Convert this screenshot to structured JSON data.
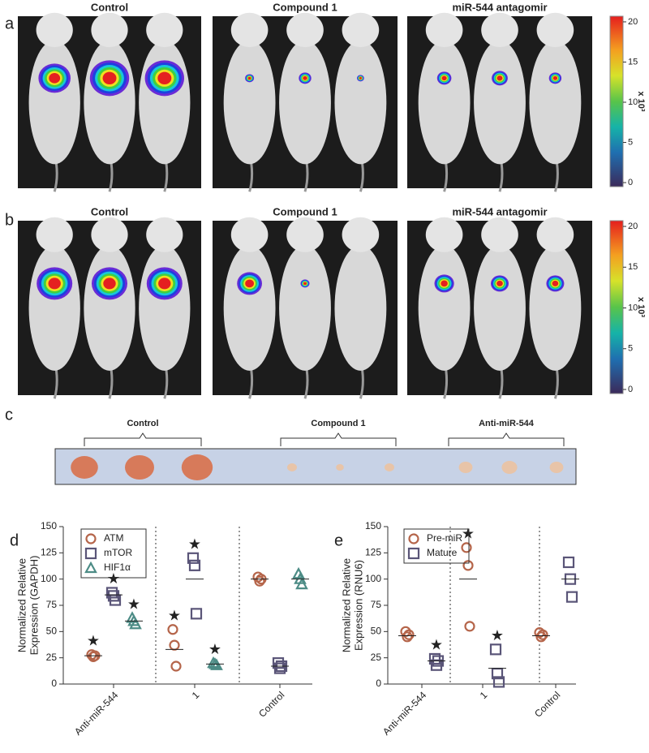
{
  "panels": {
    "a": {
      "label": "a",
      "titles": [
        "Control",
        "Compound 1",
        "miR-544 antagomir"
      ]
    },
    "b": {
      "label": "b",
      "titles": [
        "Control",
        "Compound 1",
        "miR-544 antagomir"
      ]
    },
    "colorbar": {
      "ticks": [
        0,
        5,
        10,
        15,
        20
      ],
      "lim": [
        -0.5,
        20.7
      ],
      "unit": "x 10³"
    },
    "c": {
      "label": "c",
      "groups": [
        "Control",
        "Compound 1",
        "Anti-miR-544"
      ]
    }
  },
  "chart_data": [
    {
      "type": "scatter",
      "panel_label": "d",
      "ylabel": [
        "Normalized Relative",
        "Expression (GAPDH)"
      ],
      "categories": [
        "Anti-miR-544",
        "1",
        "Control"
      ],
      "ylim": [
        0,
        150
      ],
      "yticks": [
        0,
        25,
        50,
        75,
        100,
        125,
        150
      ],
      "star": "★",
      "series": [
        {
          "name": "ATM",
          "color": "#b5654a",
          "marker": "circle",
          "values": [
            [
              28,
              26,
              27
            ],
            [
              52,
              37,
              17
            ],
            [
              102,
              98,
              100
            ]
          ],
          "means": [
            27,
            33,
            100
          ],
          "significant": [
            true,
            true,
            false
          ]
        },
        {
          "name": "mTOR",
          "color": "#5a5578",
          "marker": "square",
          "values": [
            [
              87,
              84,
              80
            ],
            [
              120,
              113,
              67
            ],
            [
              20,
              15,
              17
            ]
          ],
          "means": [
            85,
            100,
            17
          ],
          "significant": [
            true,
            true,
            false
          ]
        },
        {
          "name": "HIF1α",
          "color": "#4d8c86",
          "marker": "triangle",
          "values": [
            [
              63,
              60,
              57
            ],
            [
              20,
              19,
              18
            ],
            [
              105,
              100,
              95
            ]
          ],
          "means": [
            60,
            19,
            100
          ],
          "significant": [
            true,
            true,
            false
          ]
        }
      ]
    },
    {
      "type": "scatter",
      "panel_label": "e",
      "ylabel": [
        "Normalized Relative",
        "Expression (RNU6)"
      ],
      "categories": [
        "Anti-miR-544",
        "1",
        "Control"
      ],
      "ylim": [
        0,
        150
      ],
      "yticks": [
        0,
        25,
        50,
        75,
        100,
        125,
        150
      ],
      "star": "★",
      "series": [
        {
          "name": "Pre-miR",
          "color": "#b5654a",
          "marker": "circle",
          "values": [
            [
              50,
              45,
              47
            ],
            [
              130,
              113,
              55
            ],
            [
              49,
              45,
              47
            ]
          ],
          "means": [
            46,
            100,
            46
          ],
          "significant": [
            false,
            true,
            false
          ]
        },
        {
          "name": "Mature",
          "color": "#5a5578",
          "marker": "square",
          "values": [
            [
              24,
              18,
              22
            ],
            [
              33,
              10,
              2
            ],
            [
              116,
              100,
              83
            ]
          ],
          "means": [
            22,
            15,
            100
          ],
          "significant": [
            true,
            true,
            false
          ]
        }
      ]
    }
  ]
}
